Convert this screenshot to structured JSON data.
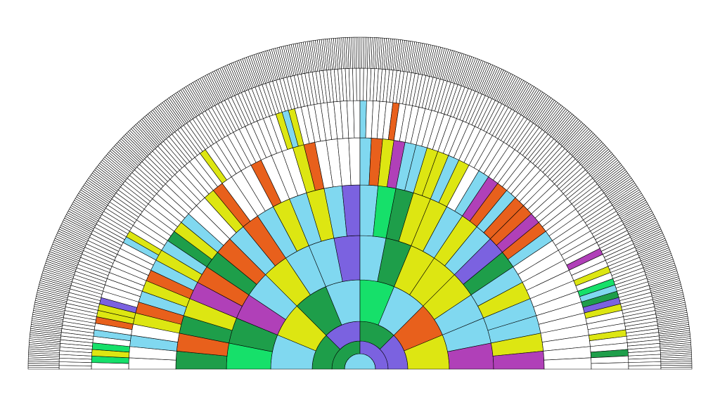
{
  "fan_chart": {
    "rings": [
      {
        "colors": [
          "#80d8f0"
        ]
      },
      {
        "colors": [
          "#1e9e4a",
          "#7b62e0"
        ]
      },
      {
        "colors": [
          "#1e9e4a",
          "#7b62e0",
          "#1e9e4a",
          "#7b62e0"
        ]
      },
      {
        "colors": [
          "#80d8f0",
          "#dde612",
          "#1e9e4a",
          "#80d8f0",
          "#16e06a",
          "#80d8f0",
          "#e8601c",
          "#dde612"
        ]
      },
      {
        "colors": [
          "#16e06a",
          "#1e9e4a",
          "#b040b8",
          "#80d8f0",
          "#dde612",
          "#80d8f0",
          "#80d8f0",
          "#7b62e0",
          "#80d8f0",
          "#1e9e4a",
          "#dde612",
          "#dde612",
          "#dde612",
          "#80d8f0",
          "#80d8f0",
          "#b040b8"
        ]
      },
      {
        "colors": [
          "#1e9e4a",
          "#e8601c",
          "#1e9e4a",
          "#dde612",
          "#b040b8",
          "#e8601c",
          "#1e9e4a",
          "#e8601c",
          "#80d8f0",
          "#e8601c",
          "#80d8f0",
          "#dde612",
          "#80d8f0",
          "#dde612",
          "#80d8f0",
          "#7b62e0",
          "#80d8f0",
          "#16e06a",
          "#1e9e4a",
          "#dde612",
          "#dde612",
          "#80d8f0",
          "#dde612",
          "#80d8f0",
          "#7b62e0",
          "#1e9e4a",
          "#80d8f0",
          "#dde612",
          "#80d8f0",
          "#80d8f0",
          "#dde612",
          "#b040b8"
        ]
      },
      {
        "colors": [
          "#ffffff",
          "#ffffff",
          "#80d8f0",
          "#ffffff",
          "#dde612",
          "#e8601c",
          "#80d8f0",
          "#dde612",
          "#e8601c",
          "#80d8f0",
          "#dde612",
          "#80d8f0",
          "#1e9e4a",
          "#dde612",
          "#80d8f0",
          "#ffffff",
          "#ffffff",
          "#dde612",
          "#e8601c",
          "#ffffff",
          "#ffffff",
          "#ffffff",
          "#e8601c",
          "#ffffff",
          "#ffffff",
          "#ffffff",
          "#dde612",
          "#e8601c",
          "#ffffff",
          "#ffffff",
          "#ffffff",
          "#ffffff",
          "#80d8f0",
          "#e8601c",
          "#dde612",
          "#b040b8",
          "#80d8f0",
          "#80d8f0",
          "#dde612",
          "#dde612",
          "#80d8f0",
          "#dde612",
          "#ffffff",
          "#80d8f0",
          "#b040b8",
          "#e8601c",
          "#80d8f0",
          "#e8601c",
          "#e8601c",
          "#b040b8",
          "#e8601c",
          "#80d8f0",
          "#ffffff",
          "#ffffff",
          "#ffffff",
          "#ffffff",
          "#ffffff",
          "#ffffff",
          "#ffffff",
          "#ffffff",
          "#ffffff",
          "#ffffff",
          "#ffffff",
          "#ffffff"
        ]
      },
      {
        "colors": [
          "#ffffff",
          "#16e06a",
          "#dde612",
          "#16e06a",
          "#ffffff",
          "#80d8f0",
          "#ffffff",
          "#e8601c",
          "#dde612",
          "#dde612",
          "#7b62e0",
          "#ffffff",
          "#ffffff",
          "#ffffff",
          "#ffffff",
          "#ffffff",
          "#ffffff",
          "#ffffff",
          "#ffffff",
          "#ffffff",
          "#80d8f0",
          "#dde612",
          "#ffffff",
          "#ffffff",
          "#ffffff",
          "#ffffff",
          "#ffffff",
          "#ffffff",
          "#ffffff",
          "#ffffff",
          "#ffffff",
          "#ffffff",
          "#ffffff",
          "#ffffff",
          "#ffffff",
          "#ffffff",
          "#ffffff",
          "#ffffff",
          "#dde612",
          "#ffffff",
          "#ffffff",
          "#ffffff",
          "#ffffff",
          "#ffffff",
          "#ffffff",
          "#ffffff",
          "#ffffff",
          "#ffffff",
          "#ffffff",
          "#ffffff",
          "#ffffff",
          "#dde612",
          "#80d8f0",
          "#dde612",
          "#ffffff",
          "#ffffff",
          "#ffffff",
          "#ffffff",
          "#ffffff",
          "#ffffff",
          "#ffffff",
          "#ffffff",
          "#ffffff",
          "#ffffff",
          "#80d8f0",
          "#ffffff",
          "#ffffff",
          "#ffffff",
          "#ffffff",
          "#e8601c",
          "#ffffff",
          "#ffffff",
          "#ffffff",
          "#ffffff",
          "#ffffff",
          "#ffffff",
          "#ffffff",
          "#ffffff",
          "#ffffff",
          "#ffffff",
          "#ffffff",
          "#ffffff",
          "#ffffff",
          "#ffffff",
          "#ffffff",
          "#ffffff",
          "#ffffff",
          "#ffffff",
          "#ffffff",
          "#ffffff",
          "#ffffff",
          "#ffffff",
          "#ffffff",
          "#ffffff",
          "#ffffff",
          "#ffffff",
          "#ffffff",
          "#ffffff",
          "#ffffff",
          "#ffffff",
          "#ffffff",
          "#ffffff",
          "#ffffff",
          "#ffffff",
          "#ffffff",
          "#ffffff",
          "#ffffff",
          "#ffffff",
          "#ffffff",
          "#b040b8",
          "#ffffff",
          "#ffffff",
          "#dde612",
          "#ffffff",
          "#16e06a",
          "#80d8f0",
          "#1e9e4a",
          "#7b62e0",
          "#dde612",
          "#ffffff",
          "#ffffff",
          "#ffffff",
          "#dde612",
          "#ffffff",
          "#ffffff",
          "#1e9e4a",
          "#ffffff",
          "#ffffff"
        ]
      },
      {
        "segments": 256,
        "fill": "#ffffff"
      },
      {
        "segments": 512,
        "fill": "#ffffff"
      }
    ]
  }
}
